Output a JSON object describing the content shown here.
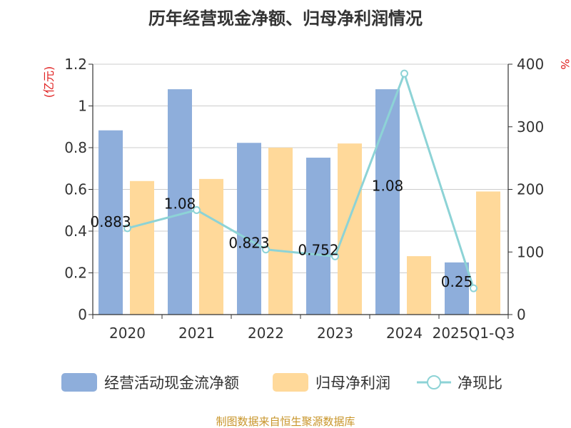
{
  "title": "历年经营现金净额、归母净利润情况",
  "source": "制图数据来自恒生聚源数据库",
  "colors": {
    "cash_flow": "#8eaedb",
    "net_profit": "#ffd99a",
    "ratio": "#8dd3d6",
    "axis_unit": "#e02020",
    "source": "#c8952a",
    "grid": "#cccccc",
    "axis": "#333333"
  },
  "chart_data": {
    "type": "bar",
    "title": "历年经营现金净额、归母净利润情况",
    "categories": [
      "2020",
      "2021",
      "2022",
      "2023",
      "2024",
      "2025Q1-Q3"
    ],
    "y_left": {
      "unit": "(亿元)",
      "ylim": [
        0,
        1.2
      ],
      "ticks": [
        "0",
        "0.2",
        "0.4",
        "0.6",
        "0.8",
        "1",
        "1.2"
      ]
    },
    "y_right": {
      "unit": "%",
      "ylim": [
        0,
        400
      ],
      "ticks": [
        "0",
        "100",
        "200",
        "300",
        "400"
      ]
    },
    "grid": true,
    "legend_position": "bottom",
    "series": [
      {
        "name": "经营活动现金流净额",
        "type": "bar",
        "axis": "left",
        "values": [
          0.883,
          1.08,
          0.823,
          0.752,
          1.08,
          0.25
        ],
        "labels": [
          "0.883",
          "1.08",
          "0.823",
          "0.752",
          "1.08",
          "0.25"
        ]
      },
      {
        "name": "归母净利润",
        "type": "bar",
        "axis": "left",
        "values": [
          0.64,
          0.65,
          0.8,
          0.82,
          0.28,
          0.59
        ]
      },
      {
        "name": "净现比",
        "type": "line",
        "axis": "right",
        "values": [
          138,
          167,
          104,
          93,
          385,
          42
        ]
      }
    ]
  }
}
